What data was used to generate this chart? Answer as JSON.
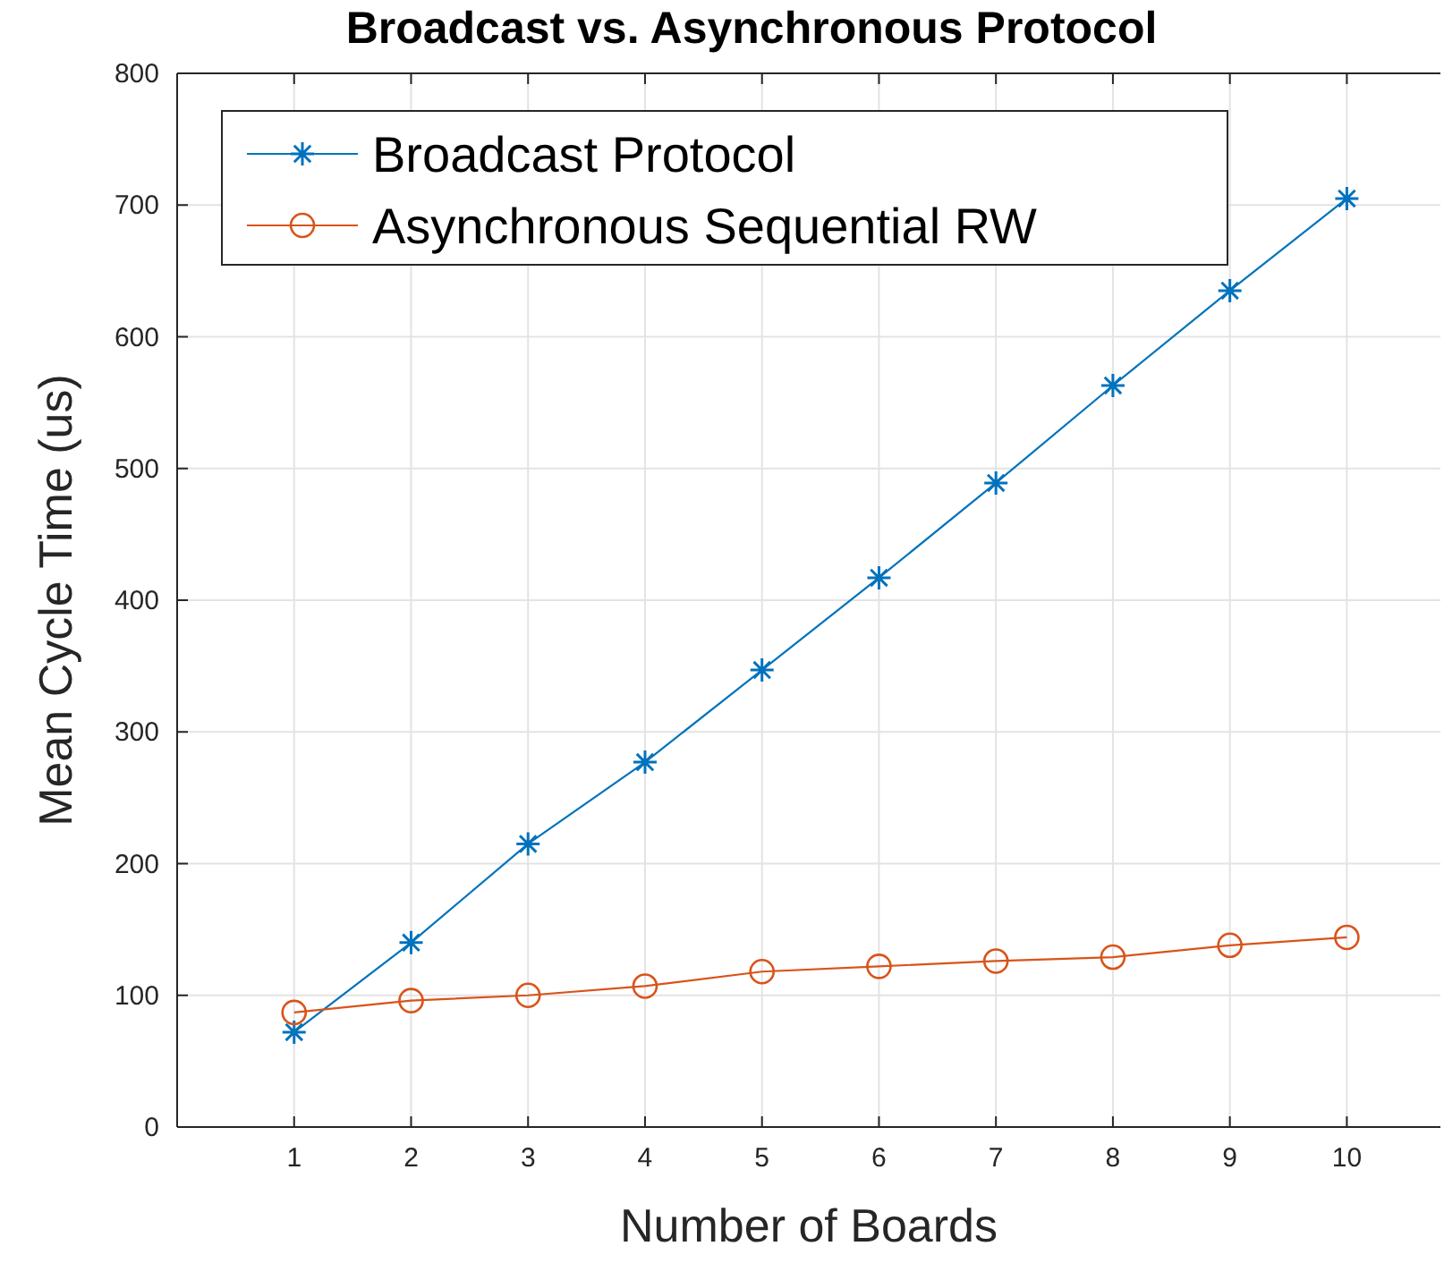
{
  "chart_data": {
    "type": "line",
    "title": "Broadcast vs. Asynchronous Protocol",
    "xlabel": "Number of Boards",
    "ylabel": "Mean Cycle Time (us)",
    "x": [
      1,
      2,
      3,
      4,
      5,
      6,
      7,
      8,
      9,
      10
    ],
    "series": [
      {
        "name": "Broadcast Protocol",
        "color": "#0072bd",
        "marker": "cross",
        "values": [
          72,
          140,
          215,
          277,
          347,
          417,
          489,
          563,
          635,
          705
        ]
      },
      {
        "name": "Asynchronous Sequential RW",
        "color": "#d95319",
        "marker": "circle",
        "values": [
          87,
          96,
          100,
          107,
          118,
          122,
          126,
          129,
          138,
          144
        ]
      }
    ],
    "xlim": [
      0,
      10.8
    ],
    "xticks": [
      1,
      2,
      3,
      4,
      5,
      6,
      7,
      8,
      9,
      10
    ],
    "ylim": [
      0,
      800
    ],
    "yticks": [
      0,
      100,
      200,
      300,
      400,
      500,
      600,
      700,
      800
    ],
    "grid": true,
    "legend": "top left",
    "line_style": "solid"
  }
}
